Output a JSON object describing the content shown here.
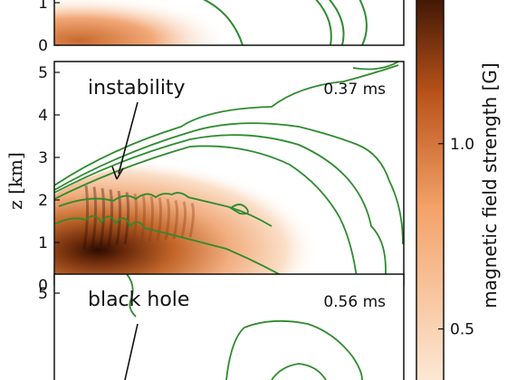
{
  "chart_data": [
    {
      "type": "heatmap",
      "panel": "top (partially visible)",
      "ylabel": "",
      "y_ticks": [
        0,
        1
      ],
      "time_label": "",
      "annotation": "",
      "contour_color": "#2e8b2e"
    },
    {
      "type": "heatmap",
      "panel": "middle",
      "ylabel": "z [km]",
      "ylim": [
        0,
        5.4
      ],
      "y_ticks": [
        0,
        1,
        2,
        3,
        4,
        5
      ],
      "time_label": "0.37 ms",
      "annotation": "instability",
      "contour_color": "#2e8b2e"
    },
    {
      "type": "heatmap",
      "panel": "bottom (partially visible)",
      "ylabel": "",
      "y_ticks": [
        5
      ],
      "time_label": "0.56 ms",
      "annotation": "black hole",
      "contour_color": "#2e8b2e"
    }
  ],
  "colorbar": {
    "label": "magnetic field strength [G]",
    "ticks": [
      0.5,
      1.0
    ],
    "range_visible": [
      0.35,
      1.4
    ],
    "color_low": "#fde9d6",
    "color_high": "#3d1503"
  }
}
